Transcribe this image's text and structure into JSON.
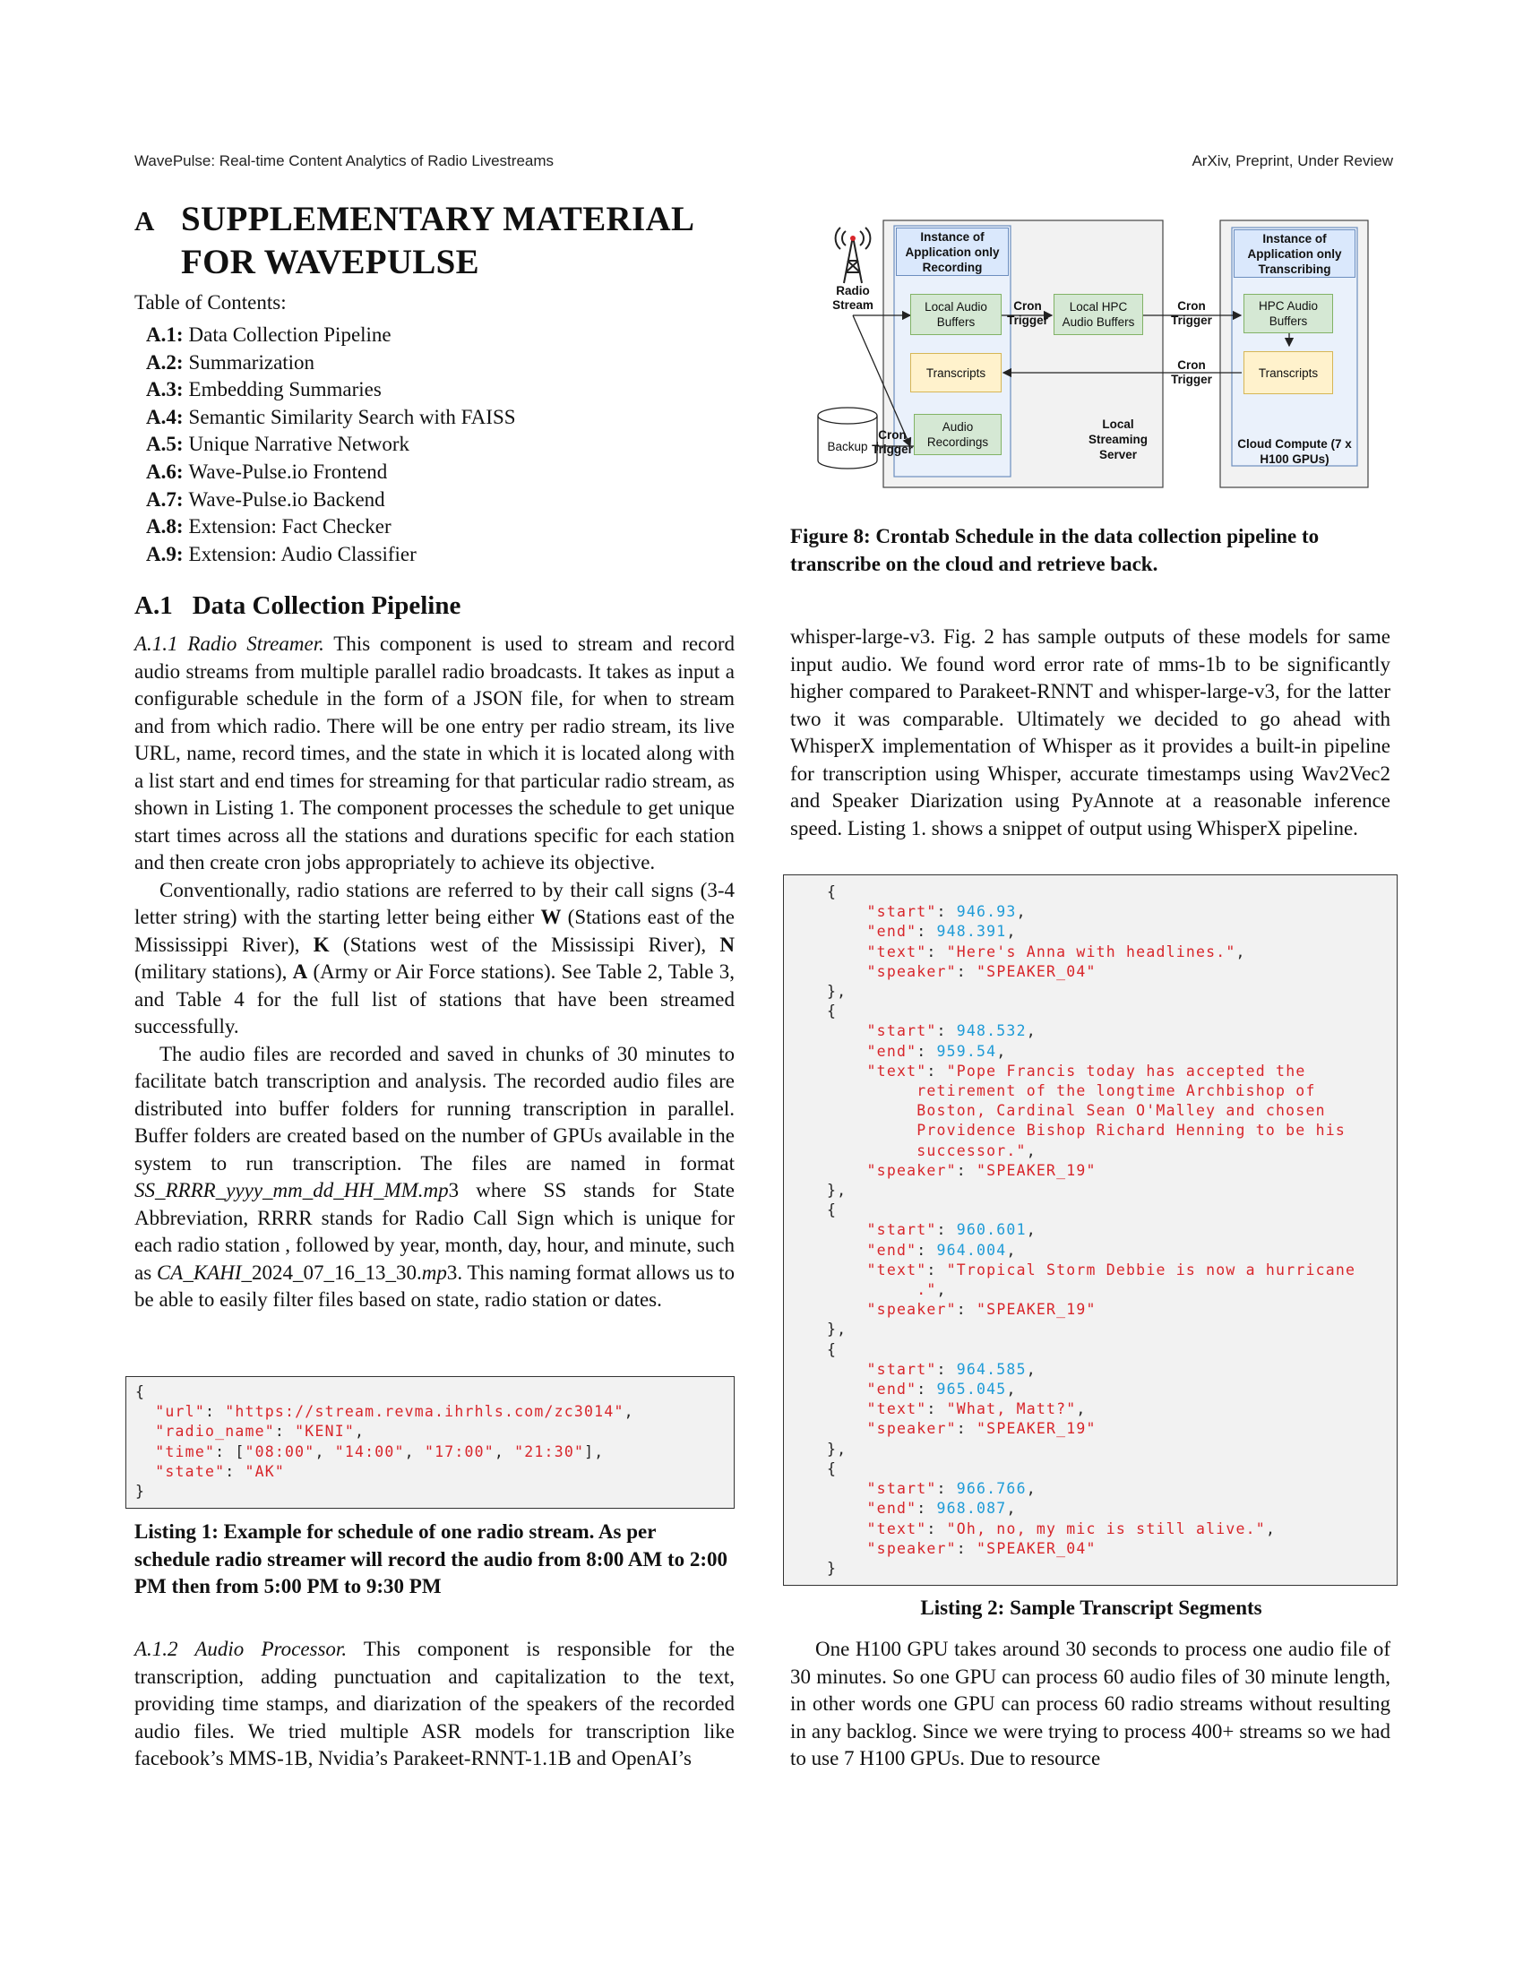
{
  "header": {
    "left": "WavePulse: Real-time Content Analytics of Radio Livestreams",
    "right": "ArXiv, Preprint, Under Review"
  },
  "section": {
    "letter": "A",
    "title_line1": "SUPPLEMENTARY MATERIAL",
    "title_line2": "FOR WAVEPULSE"
  },
  "toc": {
    "title": "Table of Contents:",
    "items": [
      {
        "num": "A.1:",
        "label": "Data Collection Pipeline"
      },
      {
        "num": "A.2:",
        "label": "Summarization"
      },
      {
        "num": "A.3:",
        "label": "Embedding Summaries"
      },
      {
        "num": "A.4:",
        "label": "Semantic Similarity Search with FAISS"
      },
      {
        "num": "A.5:",
        "label": "Unique Narrative Network"
      },
      {
        "num": "A.6:",
        "label": "Wave-Pulse.io Frontend"
      },
      {
        "num": "A.7:",
        "label": "Wave-Pulse.io Backend"
      },
      {
        "num": "A.8:",
        "label": "Extension: Fact Checker"
      },
      {
        "num": "A.9:",
        "label": "Extension: Audio Classifier"
      }
    ]
  },
  "subsection": {
    "num": "A.1",
    "title": "Data Collection Pipeline"
  },
  "left_text": {
    "p1_runin": "A.1.1 Radio Streamer.",
    "p1": "This component is used to stream and record audio streams from multiple parallel radio broadcasts. It takes as input a configurable schedule in the form of a JSON file, for when to stream and from which radio. There will be one entry per radio stream, its live URL, name, record times, and the state in which it is located along with a list start and end times for streaming for that particular radio stream, as shown in Listing 1. The component processes the schedule to get unique start times across all the stations and durations specific for each station and then create cron jobs appropriately to achieve its objective.",
    "p2_a": "Conventionally, radio stations are referred to by their call signs (3-4 letter string) with the starting letter being either ",
    "p2_W": "W",
    "p2_b": " (Stations east of the Mississippi River), ",
    "p2_K": "K",
    "p2_c": " (Stations west of the Mississipi River), ",
    "p2_N": "N",
    "p2_d": " (military stations), ",
    "p2_A": "A",
    "p2_e": " (Army or Air Force stations). See Table 2, Table 3, and Table 4 for the full list of stations that have been streamed successfully.",
    "p3_a": "The audio files are recorded and saved in chunks of 30 minutes to facilitate batch transcription and analysis. The recorded audio files are distributed into buffer folders for running transcription in parallel. Buffer folders are created based on the number of GPUs available in the system to run transcription. The files are named in format ",
    "p3_fmt": "SS_RRRR_yyyy_mm_dd_HH_MM.mp",
    "p3_b": "3 where SS stands for State Abbreviation, RRRR stands for Radio Call Sign which is unique for each radio station , followed by year, month, day, hour, and minute, such as ",
    "p3_ex": "CA_KAHI_",
    "p3_c": "2024_07_16_13_30.",
    "p3_mp": "mp",
    "p3_d": "3. This naming format allows us to be able to easily filter files based on state, radio station or dates.",
    "p4_runin": "A.1.2 Audio Processor.",
    "p4": "This component is responsible for the transcription, adding punctuation and capitalization to the text, providing time stamps, and diarization of the speakers of the recorded audio files. We tried multiple ASR models for transcription like facebook’s MMS-1B, Nvidia’s Parakeet-RNNT-1.1B and OpenAI’s"
  },
  "listing1": {
    "caption": "Listing 1: Example for schedule of one radio stream. As per schedule radio streamer will record the audio from 8:00 AM to 2:00 PM then from 5:00 PM to 9:30 PM",
    "url_key": "\"url\"",
    "url_val": "\"https://stream.revma.ihrhls.com/zc3014\"",
    "name_key": "\"radio_name\"",
    "name_val": "\"KENI\"",
    "time_key": "\"time\"",
    "times": [
      "\"08:00\"",
      "\"14:00\"",
      "\"17:00\"",
      "\"21:30\""
    ],
    "state_key": "\"state\"",
    "state_val": "\"AK\""
  },
  "figure8": {
    "caption": "Figure 8: Crontab Schedule in the data collection pipeline to transcribe on the cloud and retrieve back.",
    "radio_stream": "Radio Stream",
    "instance_recording": "Instance of Application only Recording",
    "local_audio_buffers": "Local Audio Buffers",
    "transcripts_local": "Transcripts",
    "audio_recordings": "Audio Recordings",
    "backup": "Backup",
    "cron_trigger": "Cron Trigger",
    "local_hpc_buffers": "Local HPC Audio Buffers",
    "local_streaming_server": "Local Streaming Server",
    "instance_transcribing": "Instance of Application only Transcribing",
    "hpc_audio_buffers": "HPC Audio Buffers",
    "transcripts_cloud": "Transcripts",
    "cloud_compute": "Cloud Compute (7 x H100 GPUs)"
  },
  "right_text": {
    "p1": "whisper-large-v3. Fig. 2 has sample outputs of these models for same input audio. We found word error rate of mms-1b to be significantly higher compared to Parakeet-RNNT and whisper-large-v3, for the latter two it was comparable. Ultimately we decided to go ahead with WhisperX implementation of Whisper as it provides a built-in pipeline for transcription using Whisper, accurate timestamps using Wav2Vec2 and Speaker Diarization using PyAnnote at a reasonable inference speed. Listing 1. shows a snippet of output using WhisperX pipeline.",
    "p2": "One H100 GPU takes around 30 seconds to process one audio file of 30 minutes. So one GPU can process 60 audio files of 30 minute length, in other words one GPU can process 60 radio streams without resulting in any backlog. Since we were trying to process 400+ streams so we had to use 7 H100 GPUs. Due to resource"
  },
  "listing2": {
    "caption": "Listing 2: Sample Transcript Segments",
    "segments": [
      {
        "start": "946.93",
        "end": "948.391",
        "text": [
          "\"Here's Anna with headlines.\""
        ],
        "speaker": "\"SPEAKER_04\""
      },
      {
        "start": "948.532",
        "end": "959.54",
        "text": [
          "\"Pope Francis today has accepted the",
          "retirement of the longtime Archbishop of",
          "Boston, Cardinal Sean O'Malley and chosen",
          "Providence Bishop Richard Henning to be his",
          "successor.\""
        ],
        "speaker": "\"SPEAKER_19\""
      },
      {
        "start": "960.601",
        "end": "964.004",
        "text": [
          "\"Tropical Storm Debbie is now a hurricane",
          ".\""
        ],
        "speaker": "\"SPEAKER_19\""
      },
      {
        "start": "964.585",
        "end": "965.045",
        "text": [
          "\"What, Matt?\""
        ],
        "speaker": "\"SPEAKER_19\""
      },
      {
        "start": "966.766",
        "end": "968.087",
        "text": [
          "\"Oh, no, my mic is still alive.\""
        ],
        "speaker": "\"SPEAKER_04\""
      }
    ]
  }
}
